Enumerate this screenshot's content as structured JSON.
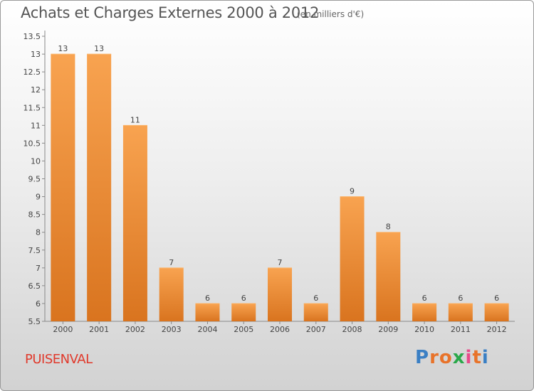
{
  "title": "Achats et Charges Externes 2000 à 2012",
  "subtitle": "(en milliers d'€)",
  "place": "PUISENVAL",
  "logo": {
    "text": "Proxiti",
    "colors": [
      "#3a7fc4",
      "#e8732a",
      "#e8732a",
      "#2aa84a",
      "#e84a8a",
      "#e8732a",
      "#3a7fc4"
    ]
  },
  "chart_data": {
    "type": "bar",
    "title": "Achats et Charges Externes 2000 à 2012",
    "unit": "(en milliers d'€)",
    "categories": [
      "2000",
      "2001",
      "2002",
      "2003",
      "2004",
      "2005",
      "2006",
      "2007",
      "2008",
      "2009",
      "2010",
      "2011",
      "2012"
    ],
    "values": [
      13,
      13,
      11,
      7,
      6,
      6,
      7,
      6,
      9,
      8,
      6,
      6,
      6
    ],
    "ylim": [
      5.5,
      13.5
    ],
    "yticks": [
      "5.5",
      "6",
      "6.5",
      "7",
      "7.5",
      "8",
      "8.5",
      "9",
      "9.5",
      "10",
      "10.5",
      "11",
      "11.5",
      "12",
      "12.5",
      "13",
      "13.5"
    ],
    "bar_color": "#f0923a",
    "grid": false
  }
}
